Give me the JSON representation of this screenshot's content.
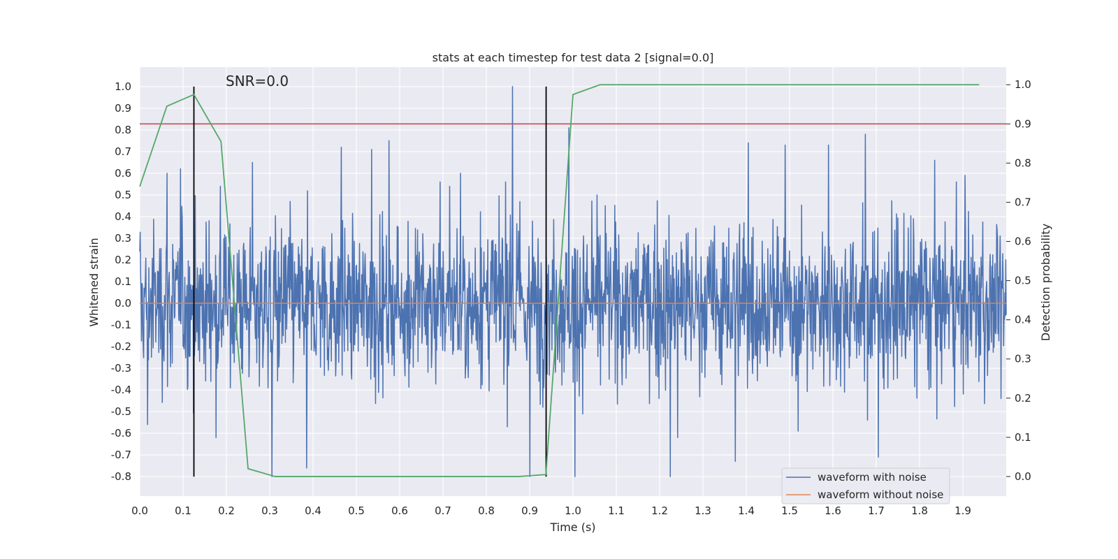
{
  "chart_data": {
    "type": "line",
    "title": "stats at each timestep for test data 2 [signal=0.0]",
    "xlabel": "Time (s)",
    "ylabel": "Whitened strain",
    "y2label": "Detection probability",
    "xlim": [
      0.0,
      2.0
    ],
    "ylim": [
      -0.89,
      1.09
    ],
    "y2lim": [
      -0.05,
      1.045
    ],
    "xticks": [
      "0.0",
      "0.1",
      "0.2",
      "0.3",
      "0.4",
      "0.5",
      "0.6",
      "0.7",
      "0.8",
      "0.9",
      "1.0",
      "1.1",
      "1.2",
      "1.3",
      "1.4",
      "1.5",
      "1.6",
      "1.7",
      "1.8",
      "1.9"
    ],
    "yticks": [
      "1.0",
      "0.9",
      "0.8",
      "0.7",
      "0.6",
      "0.5",
      "0.4",
      "0.3",
      "0.2",
      "0.1",
      "0.0",
      "-0.1",
      "-0.2",
      "-0.3",
      "-0.4",
      "-0.5",
      "-0.6",
      "-0.7",
      "-0.8"
    ],
    "y2ticks": [
      "1.0",
      "0.9",
      "0.8",
      "0.7",
      "0.6",
      "0.5",
      "0.4",
      "0.3",
      "0.2",
      "0.1",
      "0.0"
    ],
    "grid": true,
    "annotation": "SNR=0.0",
    "legend": {
      "position": "bottom-right",
      "entries": [
        "waveform with noise",
        "waveform without noise"
      ]
    },
    "colors": {
      "noisy": "#4c72b0",
      "clean": "#dd8452",
      "probability": "#55a868",
      "threshold": "#c44e52",
      "markers": "#000000",
      "background": "#eaeaf2",
      "grid": "#ffffff"
    },
    "series": [
      {
        "name": "waveform with noise",
        "axis": "left",
        "style": "noise",
        "sample_count": 2000,
        "spikes": [
          {
            "x": 0.063,
            "y": 0.6
          },
          {
            "x": 0.094,
            "y": 0.62
          },
          {
            "x": 0.018,
            "y": -0.56
          },
          {
            "x": 0.305,
            "y": -0.8
          },
          {
            "x": 0.385,
            "y": -0.76
          },
          {
            "x": 0.465,
            "y": 0.72
          },
          {
            "x": 0.535,
            "y": 0.71
          },
          {
            "x": 0.575,
            "y": 0.75
          },
          {
            "x": 0.86,
            "y": 1.0
          },
          {
            "x": 0.9,
            "y": -0.8
          },
          {
            "x": 0.99,
            "y": 0.81
          },
          {
            "x": 1.005,
            "y": -0.8
          },
          {
            "x": 1.225,
            "y": -0.8
          },
          {
            "x": 1.375,
            "y": -0.73
          },
          {
            "x": 1.405,
            "y": 0.74
          },
          {
            "x": 1.49,
            "y": 0.73
          },
          {
            "x": 1.59,
            "y": 0.73
          },
          {
            "x": 1.675,
            "y": 0.78
          },
          {
            "x": 1.705,
            "y": -0.71
          },
          {
            "x": 1.835,
            "y": 0.66
          },
          {
            "x": 1.905,
            "y": 0.59
          },
          {
            "x": 0.26,
            "y": 0.65
          },
          {
            "x": 0.74,
            "y": 0.6
          },
          {
            "x": 1.52,
            "y": -0.59
          }
        ]
      },
      {
        "name": "waveform without noise",
        "axis": "left",
        "x": [
          0.0,
          2.0
        ],
        "y": [
          0.0,
          0.0
        ]
      },
      {
        "name": "detection probability",
        "axis": "right",
        "x": [
          0.0,
          0.0625,
          0.125,
          0.1875,
          0.25,
          0.3125,
          0.375,
          0.4375,
          0.5,
          0.5625,
          0.625,
          0.6875,
          0.75,
          0.8125,
          0.875,
          0.9375,
          1.0,
          1.0625,
          1.125,
          1.1875,
          1.25,
          1.3125,
          1.375,
          1.4375,
          1.5,
          1.5625,
          1.625,
          1.6875,
          1.75,
          1.8125,
          1.875,
          1.9375
        ],
        "y": [
          0.74,
          0.945,
          0.975,
          0.855,
          0.02,
          0.0,
          0.0,
          0.0,
          0.0,
          0.0,
          0.0,
          0.0,
          0.0,
          0.0,
          0.0,
          0.005,
          0.975,
          1.0,
          1.0,
          1.0,
          1.0,
          1.0,
          1.0,
          1.0,
          1.0,
          1.0,
          1.0,
          1.0,
          1.0,
          1.0,
          1.0,
          1.0
        ]
      }
    ],
    "threshold_line": {
      "axis": "right",
      "y": 0.9
    },
    "vertical_markers": [
      {
        "x": 0.125,
        "y_range": [
          -0.8,
          1.0
        ]
      },
      {
        "x": 0.938,
        "y_range": [
          -0.8,
          1.0
        ]
      }
    ]
  }
}
